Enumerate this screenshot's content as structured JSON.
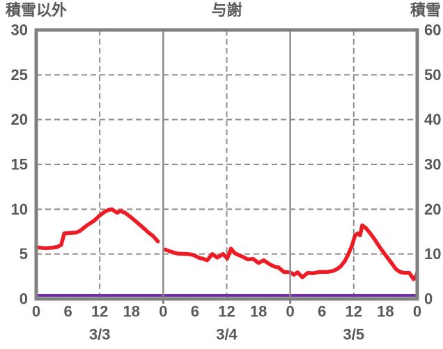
{
  "header": {
    "left_title": "積雪以外",
    "center_title": "与謝",
    "right_title": "積雪"
  },
  "style_colors": {
    "background": "#ffffff",
    "border": "#808080",
    "grid": "#8c8c8c",
    "text": "#595959",
    "series_red": "#ed1c24",
    "series_purple": "#7030a0"
  },
  "chart_data": {
    "type": "line",
    "title": "与謝",
    "left_axis": {
      "title": "積雪以外",
      "min": 0,
      "max": 30,
      "tick_values": [
        0,
        5,
        10,
        15,
        20,
        25,
        30
      ],
      "tick_labels": [
        "0",
        "5",
        "10",
        "15",
        "20",
        "25",
        "30"
      ]
    },
    "right_axis": {
      "title": "積雪",
      "min": 0,
      "max": 60,
      "tick_values": [
        0,
        10,
        20,
        30,
        40,
        50,
        60
      ],
      "tick_labels": [
        "0",
        "10",
        "20",
        "30",
        "40",
        "50",
        "60"
      ]
    },
    "x_axis": {
      "total_hours": 72,
      "hours_per_day": 24,
      "hour_tick_labels": [
        "0",
        "6",
        "12",
        "18"
      ],
      "trailing_label": "0",
      "day_labels": [
        "3/3",
        "3/4",
        "3/5"
      ],
      "day_divider_hours": [
        24,
        48
      ],
      "dashed_hours": [
        12,
        36,
        60
      ]
    },
    "grid": {
      "h_values_left": [
        5,
        10,
        15,
        20,
        25
      ],
      "dash": "8 5"
    },
    "series": [
      {
        "id": "other-than-snow-line",
        "name": "積雪以外",
        "axis": "left",
        "color": "#ed1c24",
        "width": 5.5,
        "y_offset": 0,
        "segments": [
          [
            [
              0,
              5.75
            ],
            [
              1.7,
              5.65
            ],
            [
              3,
              5.7
            ],
            [
              4,
              5.8
            ],
            [
              4.7,
              6.0
            ],
            [
              5.3,
              7.3
            ],
            [
              6.5,
              7.35
            ],
            [
              7.6,
              7.4
            ],
            [
              8.3,
              7.6
            ],
            [
              9.6,
              8.2
            ],
            [
              10.9,
              8.7
            ],
            [
              12,
              9.3
            ],
            [
              12.9,
              9.7
            ],
            [
              13.6,
              9.9
            ],
            [
              14.3,
              10.0
            ],
            [
              15.3,
              9.6
            ],
            [
              15.9,
              9.8
            ],
            [
              16.8,
              9.6
            ],
            [
              17.9,
              9.1
            ],
            [
              18.9,
              8.6
            ],
            [
              20.1,
              8.0
            ],
            [
              21.2,
              7.4
            ],
            [
              22.1,
              7.0
            ],
            [
              23,
              6.4
            ]
          ],
          [
            [
              24.3,
              5.5
            ],
            [
              25.8,
              5.2
            ],
            [
              26.7,
              5.05
            ],
            [
              28.7,
              5.0
            ],
            [
              29.7,
              4.9
            ],
            [
              30.7,
              4.6
            ],
            [
              31.6,
              4.45
            ],
            [
              32.3,
              4.3
            ],
            [
              33.3,
              5.0
            ],
            [
              34.2,
              4.6
            ],
            [
              35.3,
              5.0
            ],
            [
              36.1,
              4.5
            ],
            [
              36.8,
              5.6
            ],
            [
              37.5,
              5.1
            ],
            [
              38.2,
              4.9
            ],
            [
              39,
              4.7
            ],
            [
              40,
              4.4
            ],
            [
              41,
              4.45
            ],
            [
              42,
              4.0
            ],
            [
              43,
              4.3
            ],
            [
              44,
              3.9
            ],
            [
              45,
              3.6
            ],
            [
              45.8,
              3.5
            ],
            [
              46.8,
              3.0
            ],
            [
              48,
              2.95
            ],
            [
              48.7,
              2.7
            ],
            [
              49.4,
              2.95
            ],
            [
              50.3,
              2.4
            ],
            [
              51.3,
              2.9
            ],
            [
              52.3,
              2.85
            ],
            [
              53.5,
              3.0
            ],
            [
              55,
              3.0
            ],
            [
              56,
              3.1
            ],
            [
              56.8,
              3.3
            ],
            [
              57.5,
              3.6
            ],
            [
              58.3,
              4.2
            ],
            [
              59,
              5.0
            ],
            [
              59.7,
              6.0
            ],
            [
              60.2,
              7.0
            ],
            [
              60.7,
              7.3
            ],
            [
              61.2,
              7.1
            ],
            [
              61.6,
              8.2
            ],
            [
              62.3,
              7.9
            ],
            [
              63,
              7.4
            ],
            [
              64,
              6.6
            ],
            [
              65,
              5.7
            ],
            [
              66,
              4.9
            ],
            [
              67,
              4.1
            ],
            [
              68,
              3.3
            ],
            [
              68.8,
              3.0
            ],
            [
              69.5,
              2.9
            ],
            [
              70.5,
              2.9
            ],
            [
              71.3,
              2.2
            ],
            [
              71.7,
              2.4
            ],
            [
              72,
              2.9
            ]
          ]
        ]
      },
      {
        "id": "snow-depth-line",
        "name": "積雪",
        "axis": "right",
        "color": "#7030a0",
        "width": 4,
        "y_offset": -5,
        "segments": [
          [
            [
              0,
              0
            ],
            [
              72,
              0
            ]
          ]
        ]
      }
    ]
  }
}
